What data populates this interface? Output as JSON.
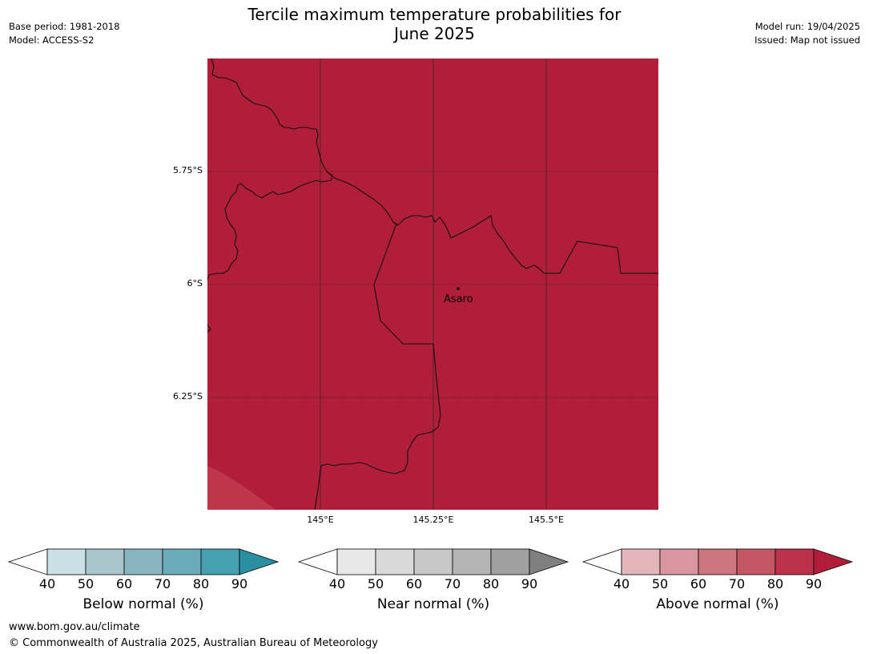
{
  "title": {
    "line1": "Tercile maximum temperature probabilities for",
    "line2": "June 2025"
  },
  "meta": {
    "base_period": "Base period: 1981-2018",
    "model": "Model: ACCESS-S2",
    "model_run": "Model run: 19/04/2025",
    "issued": "Issued: Map not issued"
  },
  "map": {
    "fill_color": "#b11e39",
    "corner_fill_color": "#bd3649",
    "place_label": "Asaro",
    "lat_labels": [
      "5.75°S",
      "6°S",
      "6.25°S"
    ],
    "lon_labels": [
      "145°E",
      "145.25°E",
      "145.5°E"
    ]
  },
  "colorbars": [
    {
      "title": "Below normal (%)",
      "ticks": [
        "40",
        "50",
        "60",
        "70",
        "80",
        "90"
      ],
      "colors": [
        "#ffffff",
        "#c9e0e5",
        "#a9c6cc",
        "#89b5c1",
        "#6aacba",
        "#45a0b0",
        "#2a8fa0"
      ]
    },
    {
      "title": "Near normal (%)",
      "ticks": [
        "40",
        "50",
        "60",
        "70",
        "80",
        "90"
      ],
      "colors": [
        "#ffffff",
        "#e8e8e8",
        "#d9d9d9",
        "#c8c8c8",
        "#b5b5b5",
        "#a0a0a0",
        "#808080"
      ]
    },
    {
      "title": "Above normal (%)",
      "ticks": [
        "40",
        "50",
        "60",
        "70",
        "80",
        "90"
      ],
      "colors": [
        "#ffffff",
        "#e3b6bc",
        "#d8969e",
        "#cd767f",
        "#c55765",
        "#bb3149",
        "#b11e39"
      ]
    }
  ],
  "footer": {
    "website": "www.bom.gov.au/climate",
    "copyright": "© Commonwealth of Australia 2025, Australian Bureau of Meteorology"
  }
}
